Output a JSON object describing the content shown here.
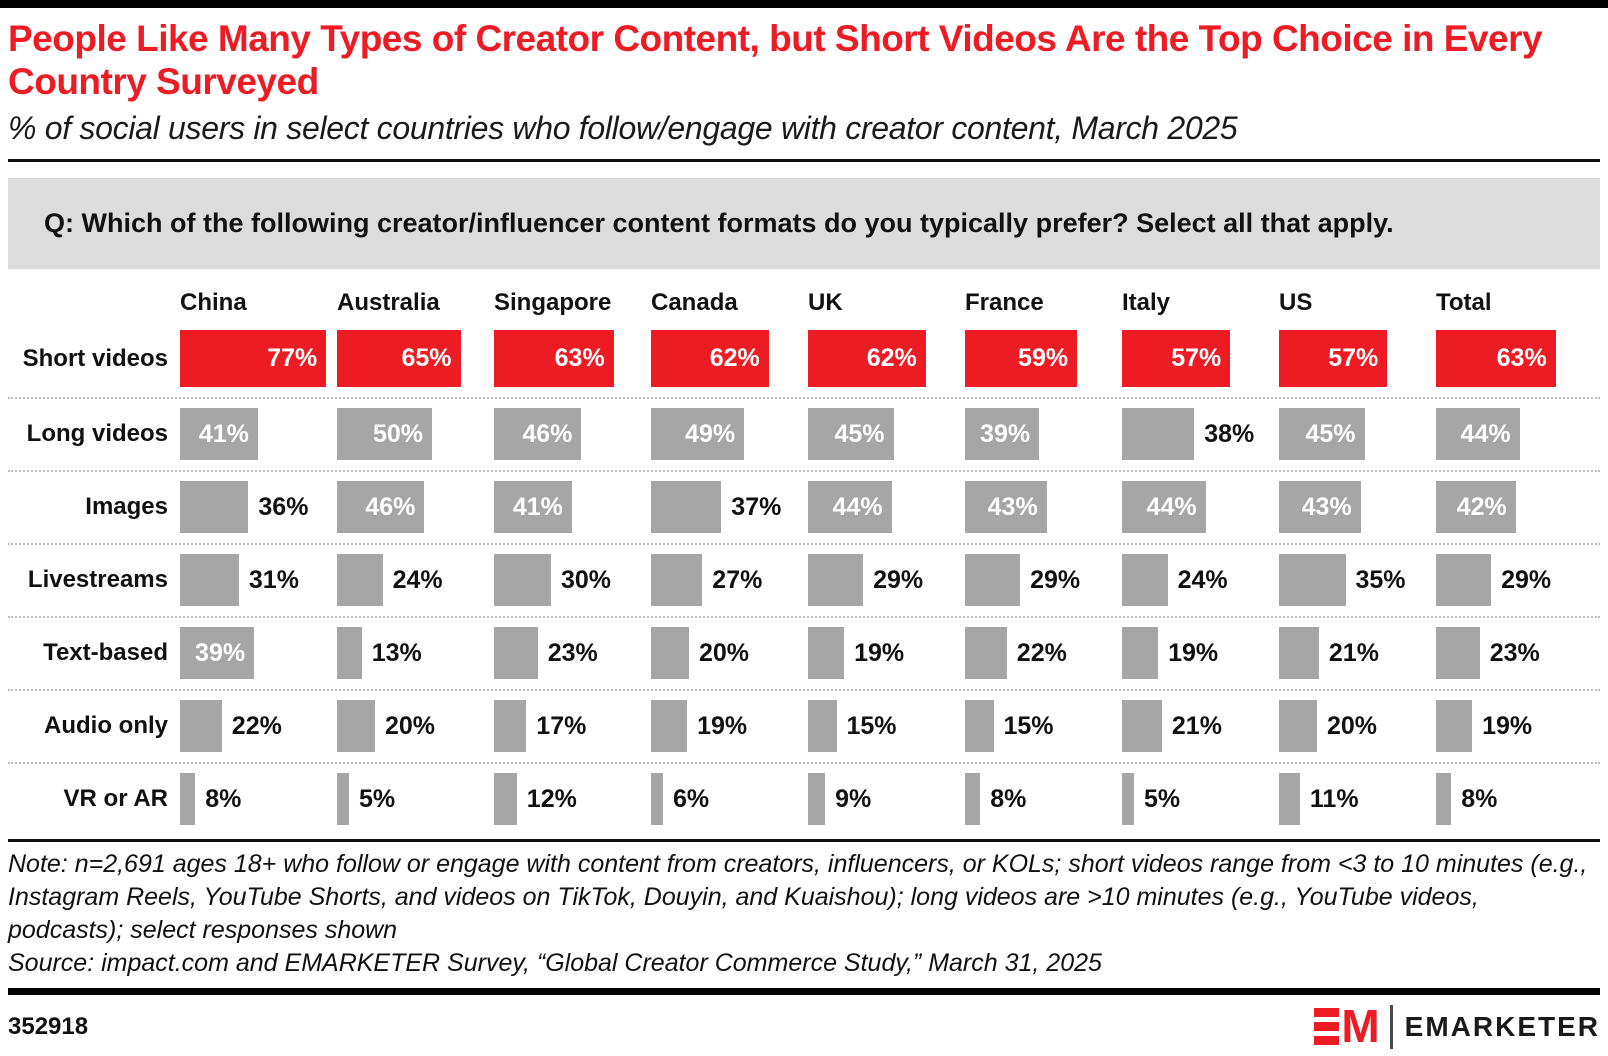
{
  "header": {
    "title": "People Like Many Types of Creator Content, but Short Videos Are the Top Choice in Every Country Surveyed",
    "subtitle": "% of social users in select countries who follow/engage with creator content, March 2025"
  },
  "question": {
    "text": "Q: Which of the following creator/influencer content formats do you typically prefer? Select all that apply."
  },
  "chart_data": {
    "type": "bar",
    "orientation": "horizontal-small-multiples",
    "unit": "%",
    "bar_colors": {
      "highlight": "#ED1C24",
      "default": "#a6a6a6"
    },
    "categories": [
      "China",
      "Australia",
      "Singapore",
      "Canada",
      "UK",
      "France",
      "Italy",
      "US",
      "Total"
    ],
    "rows": [
      {
        "label": "Short videos",
        "color": "red",
        "values": [
          77,
          65,
          63,
          62,
          62,
          59,
          57,
          57,
          63
        ],
        "label_outside": [
          false,
          false,
          false,
          false,
          false,
          false,
          false,
          false,
          false
        ]
      },
      {
        "label": "Long videos",
        "color": "gray",
        "values": [
          41,
          50,
          46,
          49,
          45,
          39,
          38,
          45,
          44
        ],
        "label_outside": [
          false,
          false,
          false,
          false,
          false,
          false,
          true,
          false,
          false
        ]
      },
      {
        "label": "Images",
        "color": "gray",
        "values": [
          36,
          46,
          41,
          37,
          44,
          43,
          44,
          43,
          42
        ],
        "label_outside": [
          true,
          false,
          false,
          true,
          false,
          false,
          false,
          false,
          false
        ]
      },
      {
        "label": "Livestreams",
        "color": "gray",
        "values": [
          31,
          24,
          30,
          27,
          29,
          29,
          24,
          35,
          29
        ],
        "label_outside": [
          true,
          true,
          true,
          true,
          true,
          true,
          true,
          true,
          true
        ]
      },
      {
        "label": "Text-based",
        "color": "gray",
        "values": [
          39,
          13,
          23,
          20,
          19,
          22,
          19,
          21,
          23
        ],
        "label_outside": [
          false,
          true,
          true,
          true,
          true,
          true,
          true,
          true,
          true
        ]
      },
      {
        "label": "Audio only",
        "color": "gray",
        "values": [
          22,
          20,
          17,
          19,
          15,
          15,
          21,
          20,
          19
        ],
        "label_outside": [
          true,
          true,
          true,
          true,
          true,
          true,
          true,
          true,
          true
        ]
      },
      {
        "label": "VR or AR",
        "color": "gray",
        "values": [
          8,
          5,
          12,
          6,
          9,
          8,
          5,
          11,
          8
        ],
        "label_outside": [
          true,
          true,
          true,
          true,
          true,
          true,
          true,
          true,
          true
        ]
      }
    ]
  },
  "footnote": {
    "note": "Note: n=2,691 ages 18+ who follow or engage with content from creators, influencers, or KOLs; short videos range from <3 to 10 minutes (e.g., Instagram Reels, YouTube Shorts, and videos on TikTok, Douyin, and Kuaishou); long videos are >10 minutes (e.g., YouTube videos, podcasts); select responses shown",
    "source": "Source: impact.com and EMARKETER Survey, “Global Creator Commerce Study,” March 31, 2025"
  },
  "footer": {
    "chart_id": "352918",
    "logo": {
      "monogram_m": "M",
      "wordmark": "EMARKETER"
    }
  }
}
